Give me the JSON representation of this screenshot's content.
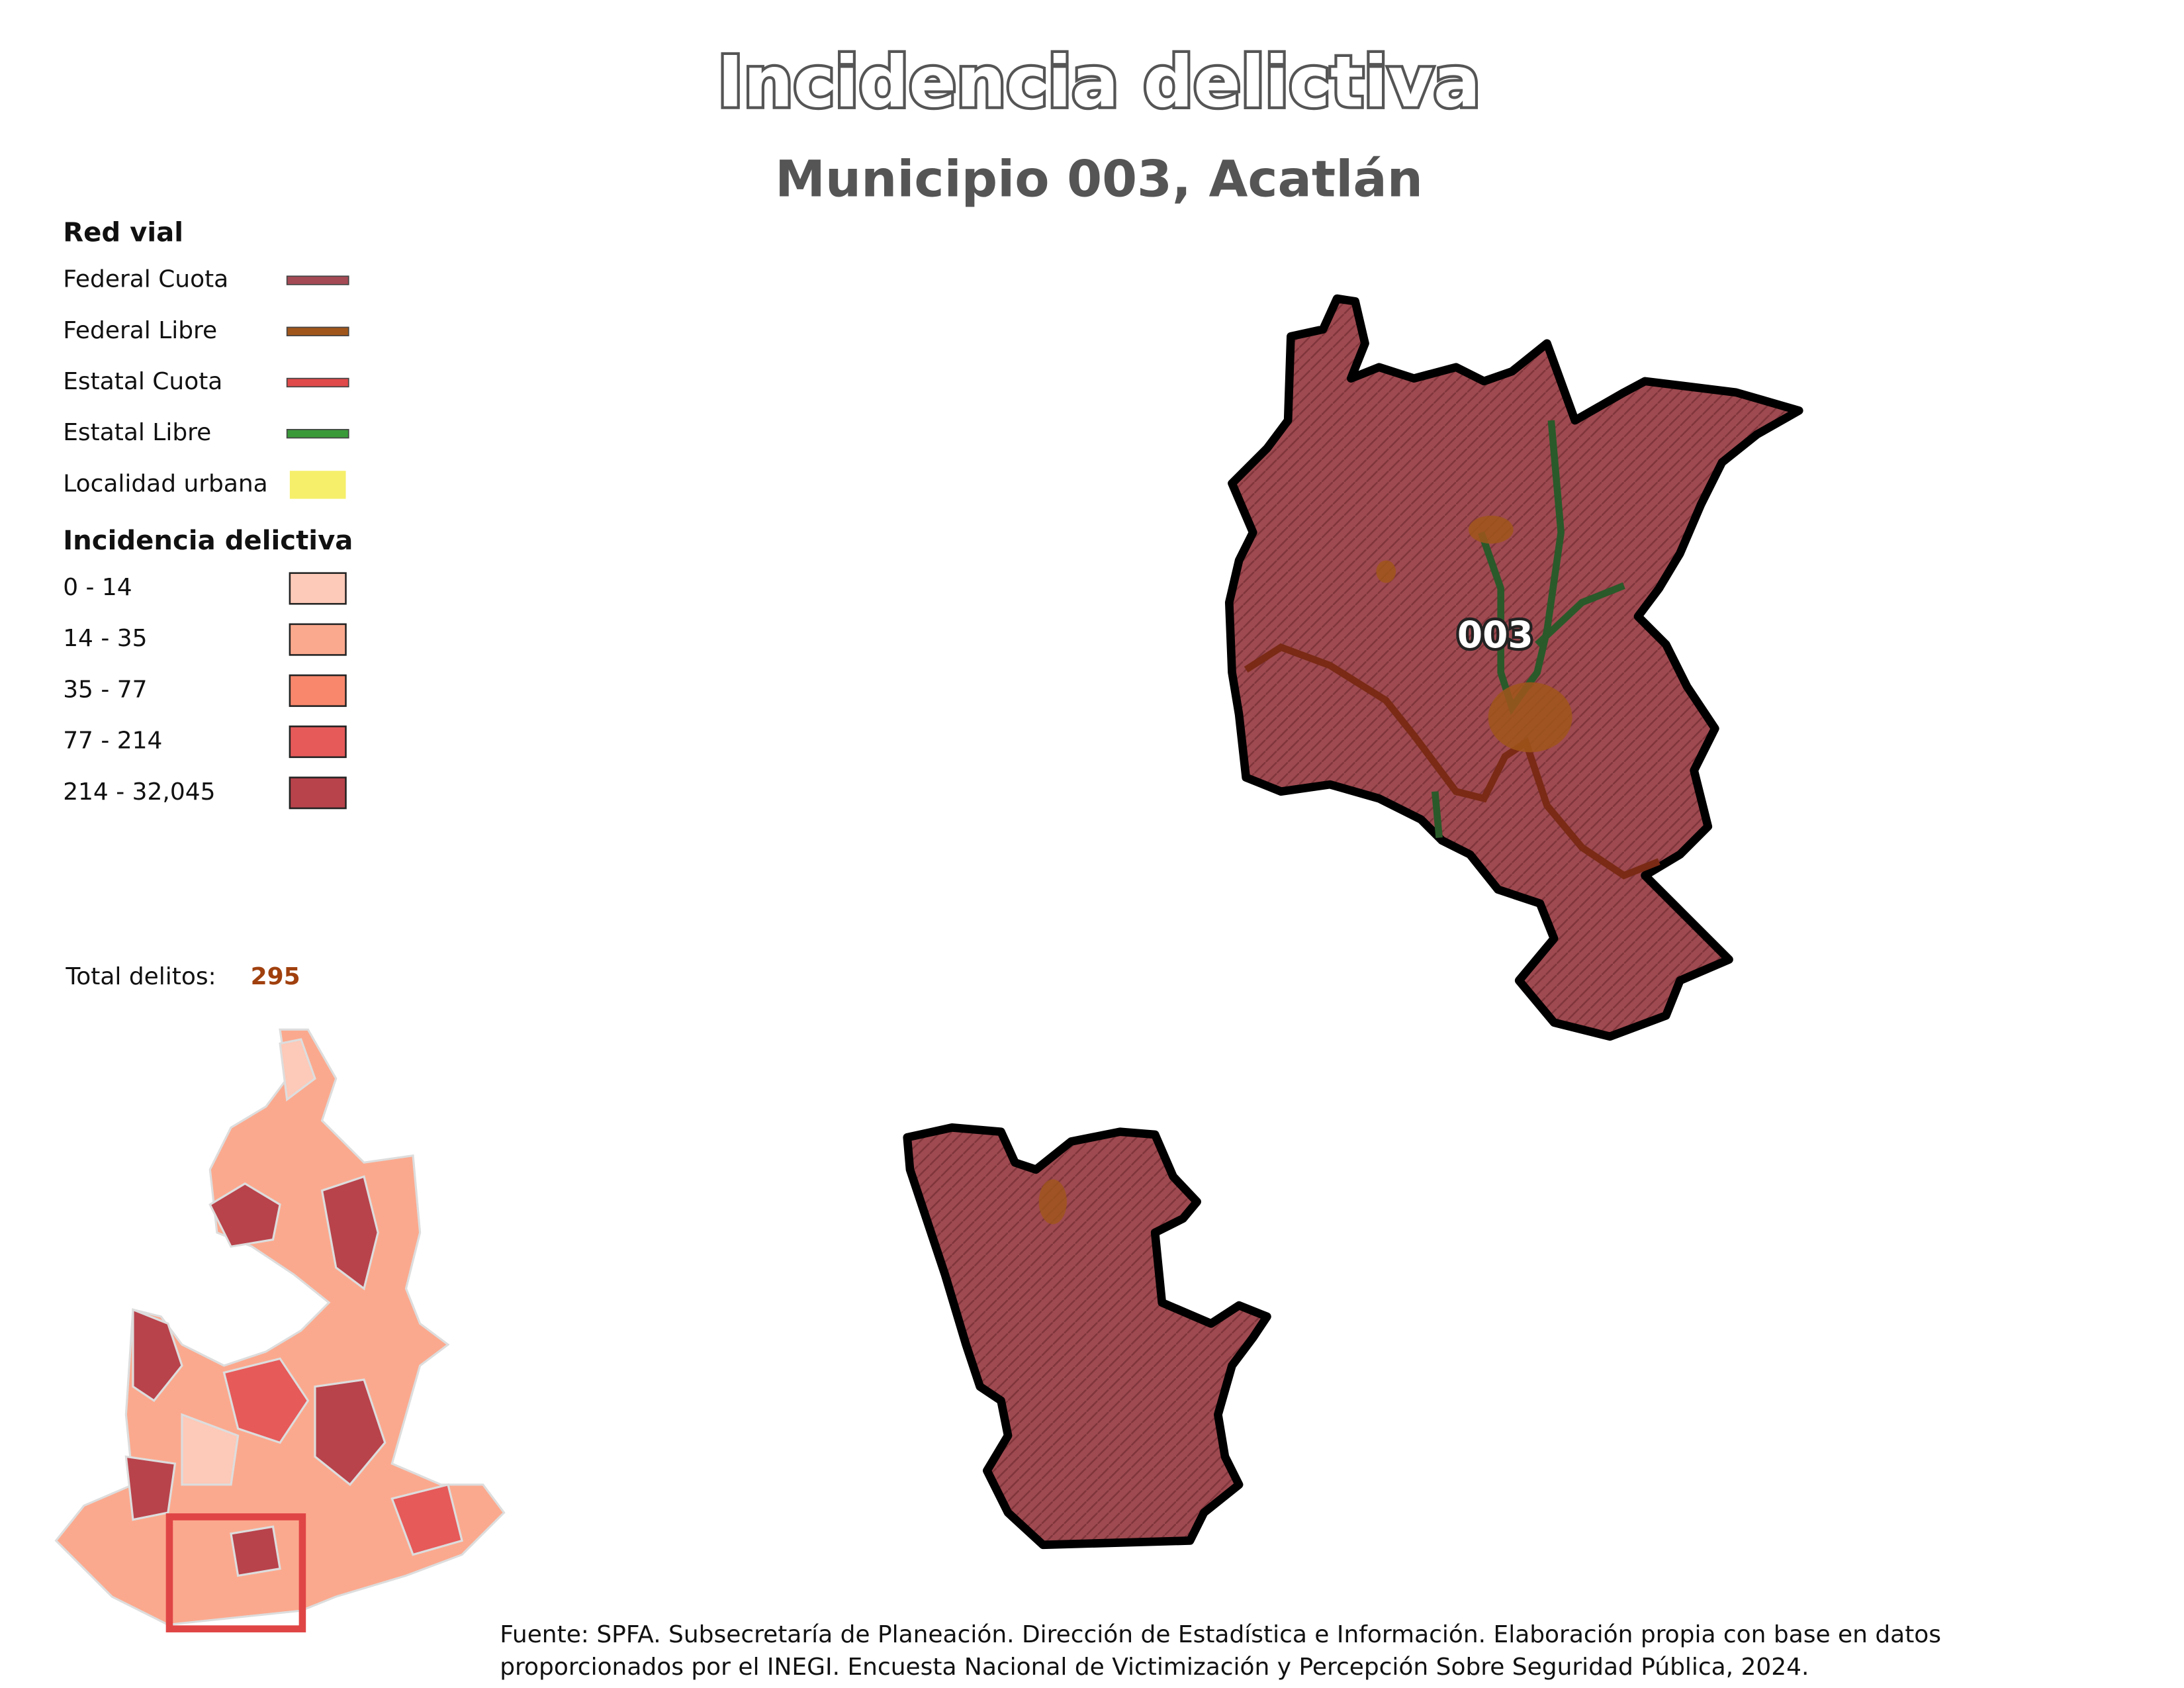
{
  "header": {
    "title": "Incidencia delictiva",
    "subtitle": "Municipio 003, Acatlán"
  },
  "legend": {
    "road_title": "Red vial",
    "roads": [
      {
        "label": "Federal Cuota",
        "color": "#a44a55"
      },
      {
        "label": "Federal Libre",
        "color": "#a0561a"
      },
      {
        "label": "Estatal Cuota",
        "color": "#e04a4a"
      },
      {
        "label": "Estatal Libre",
        "color": "#3a9a3a"
      },
      {
        "label": "Localidad urbana",
        "color": "#f5ef6a"
      }
    ],
    "incidence_title": "Incidencia delictiva",
    "classes": [
      {
        "label": "0 - 14",
        "color": "#fdc9b8"
      },
      {
        "label": "14 - 35",
        "color": "#fba98e"
      },
      {
        "label": "35 - 77",
        "color": "#f8876c"
      },
      {
        "label": "77 - 214",
        "color": "#e65a5a"
      },
      {
        "label": "214 - 32,045",
        "color": "#b8434b"
      }
    ]
  },
  "total": {
    "label": "Total delitos:",
    "value": 295
  },
  "map": {
    "label": "003"
  },
  "source": [
    "Fuente: SPFA. Subsecretaría de Planeación. Dirección de Estadística e Información. Elaboración propia con base en datos",
    "proporcionados por el INEGI. Encuesta Nacional de Victimización y Percepción Sobre Seguridad Pública, 2024."
  ]
}
